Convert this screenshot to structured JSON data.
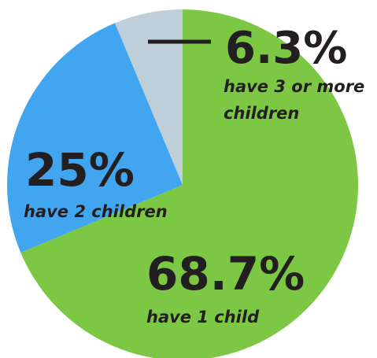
{
  "chart_data": {
    "type": "pie",
    "start_angle_deg": 0,
    "direction": "clockwise",
    "slices": [
      {
        "label": "have 1 child",
        "value": 68.7,
        "display": "68.7%",
        "color": "#7cc744"
      },
      {
        "label": "have 2 children",
        "value": 25,
        "display": "25%",
        "color": "#42a5f0"
      },
      {
        "label": "have 3 or more children",
        "value": 6.3,
        "display": "6.3%",
        "color": "#bfcfd9"
      }
    ]
  }
}
